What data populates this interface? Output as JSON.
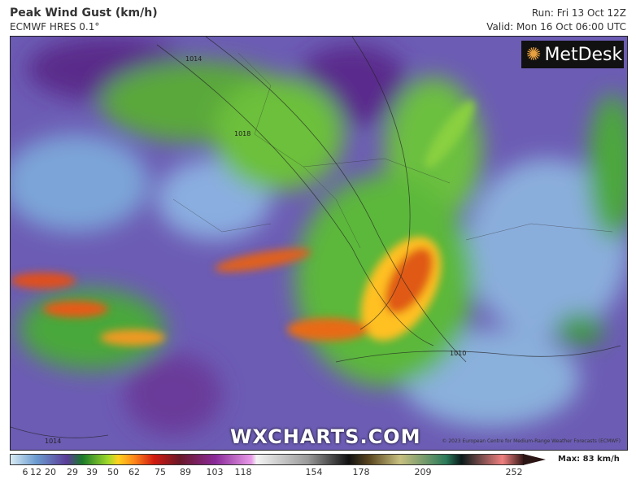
{
  "header": {
    "title": "Peak Wind Gust (km/h)",
    "model": "ECMWF HRES 0.1°",
    "run": "Run: Fri 13 Oct 12Z",
    "valid": "Valid: Mon 16 Oct 06:00 UTC"
  },
  "logo": {
    "text": "MetDesk"
  },
  "watermark": "WXCHARTS.COM",
  "copyright": "© 2023 European Centre for Medium-Range Weather Forecasts (ECMWF)",
  "isobar_labels": [
    "1014",
    "1018",
    "1010",
    "1014"
  ],
  "legend": {
    "ticks": [
      "6",
      "12",
      "20",
      "29",
      "39",
      "50",
      "62",
      "75",
      "89",
      "103",
      "118",
      "154",
      "178",
      "209",
      "252"
    ],
    "max": "Max: 83 km/h",
    "unit": "km/h"
  }
}
